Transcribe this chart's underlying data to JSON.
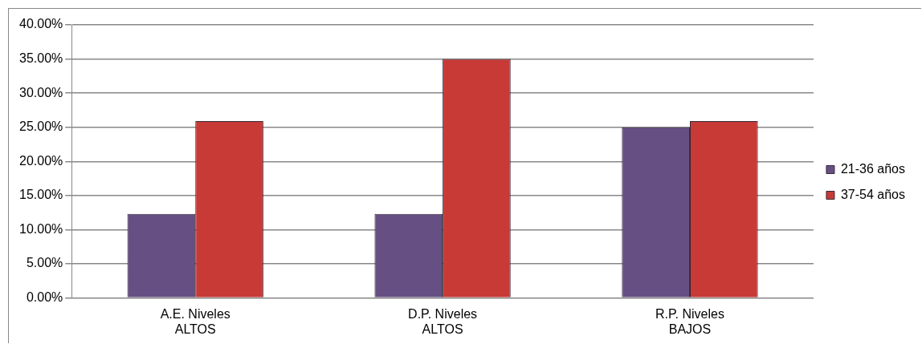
{
  "chart_data": {
    "type": "bar",
    "categories": [
      "A.E. Niveles ALTOS",
      "D.P. Niveles ALTOS",
      "R.P. Niveles BAJOS"
    ],
    "series": [
      {
        "name": "21-36 años",
        "color": "#664f83",
        "values": [
          12.3,
          12.3,
          25
        ]
      },
      {
        "name": "37-54 años",
        "color": "#c73a36",
        "values": [
          25.9,
          35,
          25.9
        ]
      }
    ],
    "ylim": [
      0,
      40
    ],
    "yticks": [
      {
        "value": 0,
        "label": "0.00%"
      },
      {
        "value": 5,
        "label": "5.00%"
      },
      {
        "value": 10,
        "label": "10.00%"
      },
      {
        "value": 15,
        "label": "15.00%"
      },
      {
        "value": 20,
        "label": "20.00%"
      },
      {
        "value": 25,
        "label": "25.00%"
      },
      {
        "value": 30,
        "label": "30.00%"
      },
      {
        "value": 35,
        "label": "35.00%"
      },
      {
        "value": 40,
        "label": "40.00%"
      }
    ],
    "grid": "y",
    "legend": "right"
  }
}
